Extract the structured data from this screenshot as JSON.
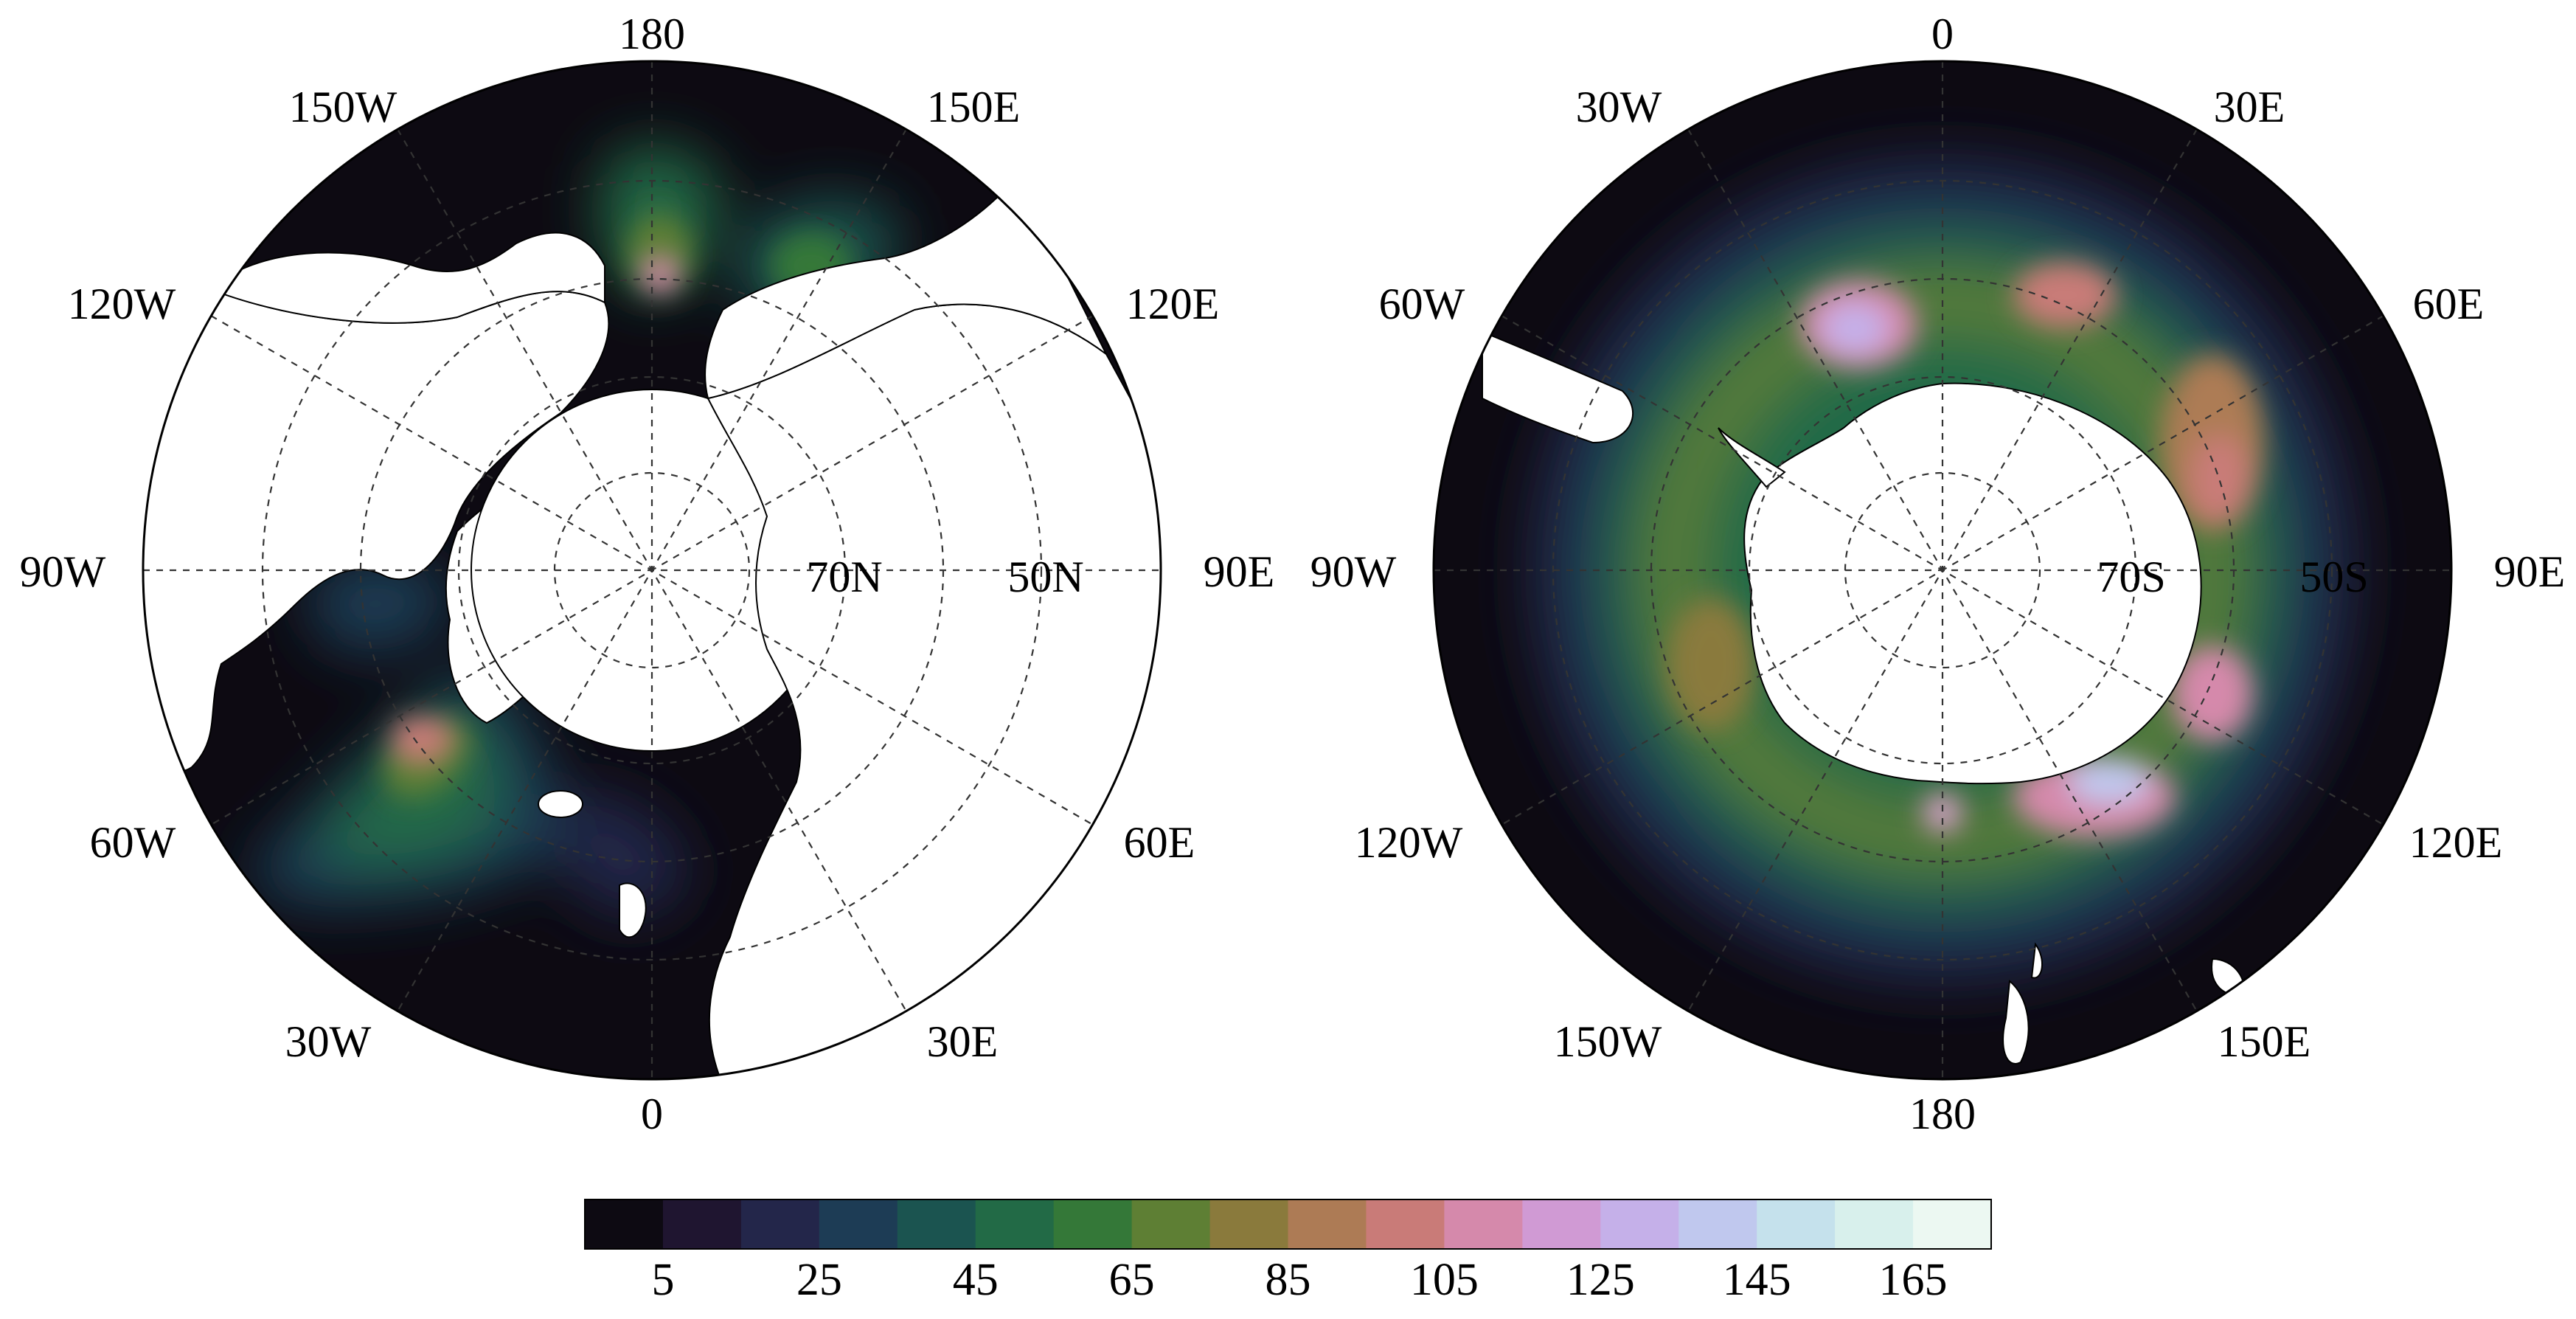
{
  "colors": {
    "ocean_background": "#0d0a12",
    "land": "#ffffff",
    "coast": "#000000",
    "grid": "#333333"
  },
  "panels": [
    {
      "id": "north",
      "labels": {
        "top": "180",
        "bottom": "0",
        "left": "90W",
        "right": "90E",
        "upper_left_1": "150W",
        "upper_left_2": "120W",
        "upper_right_1": "150E",
        "upper_right_2": "120E",
        "lower_left_1": "60W",
        "lower_left_2": "30W",
        "lower_right_1": "60E",
        "lower_right_2": "30E",
        "inner_lat_1": "70N",
        "inner_lat_2": "50N"
      }
    },
    {
      "id": "south",
      "labels": {
        "top": "0",
        "bottom": "180",
        "left": "90W",
        "right": "90E",
        "upper_left_1": "30W",
        "upper_left_2": "60W",
        "upper_right_1": "30E",
        "upper_right_2": "60E",
        "lower_left_1": "120W",
        "lower_left_2": "150W",
        "lower_right_1": "120E",
        "lower_right_2": "150E",
        "inner_lat_1": "70S",
        "inner_lat_2": "50S"
      }
    }
  ],
  "colorbar": {
    "colors": [
      "#0d0a12",
      "#1f1530",
      "#23264a",
      "#1d3c55",
      "#1b5450",
      "#226a46",
      "#347838",
      "#5e7f34",
      "#8a7a3c",
      "#ad7b55",
      "#c97b78",
      "#d589ab",
      "#d09ad4",
      "#c5b0e9",
      "#c0c8ee",
      "#c5e1ec",
      "#d8f0ec",
      "#ecf8f2"
    ],
    "tick_labels": [
      "5",
      "25",
      "45",
      "65",
      "85",
      "105",
      "125",
      "145",
      "165"
    ]
  }
}
